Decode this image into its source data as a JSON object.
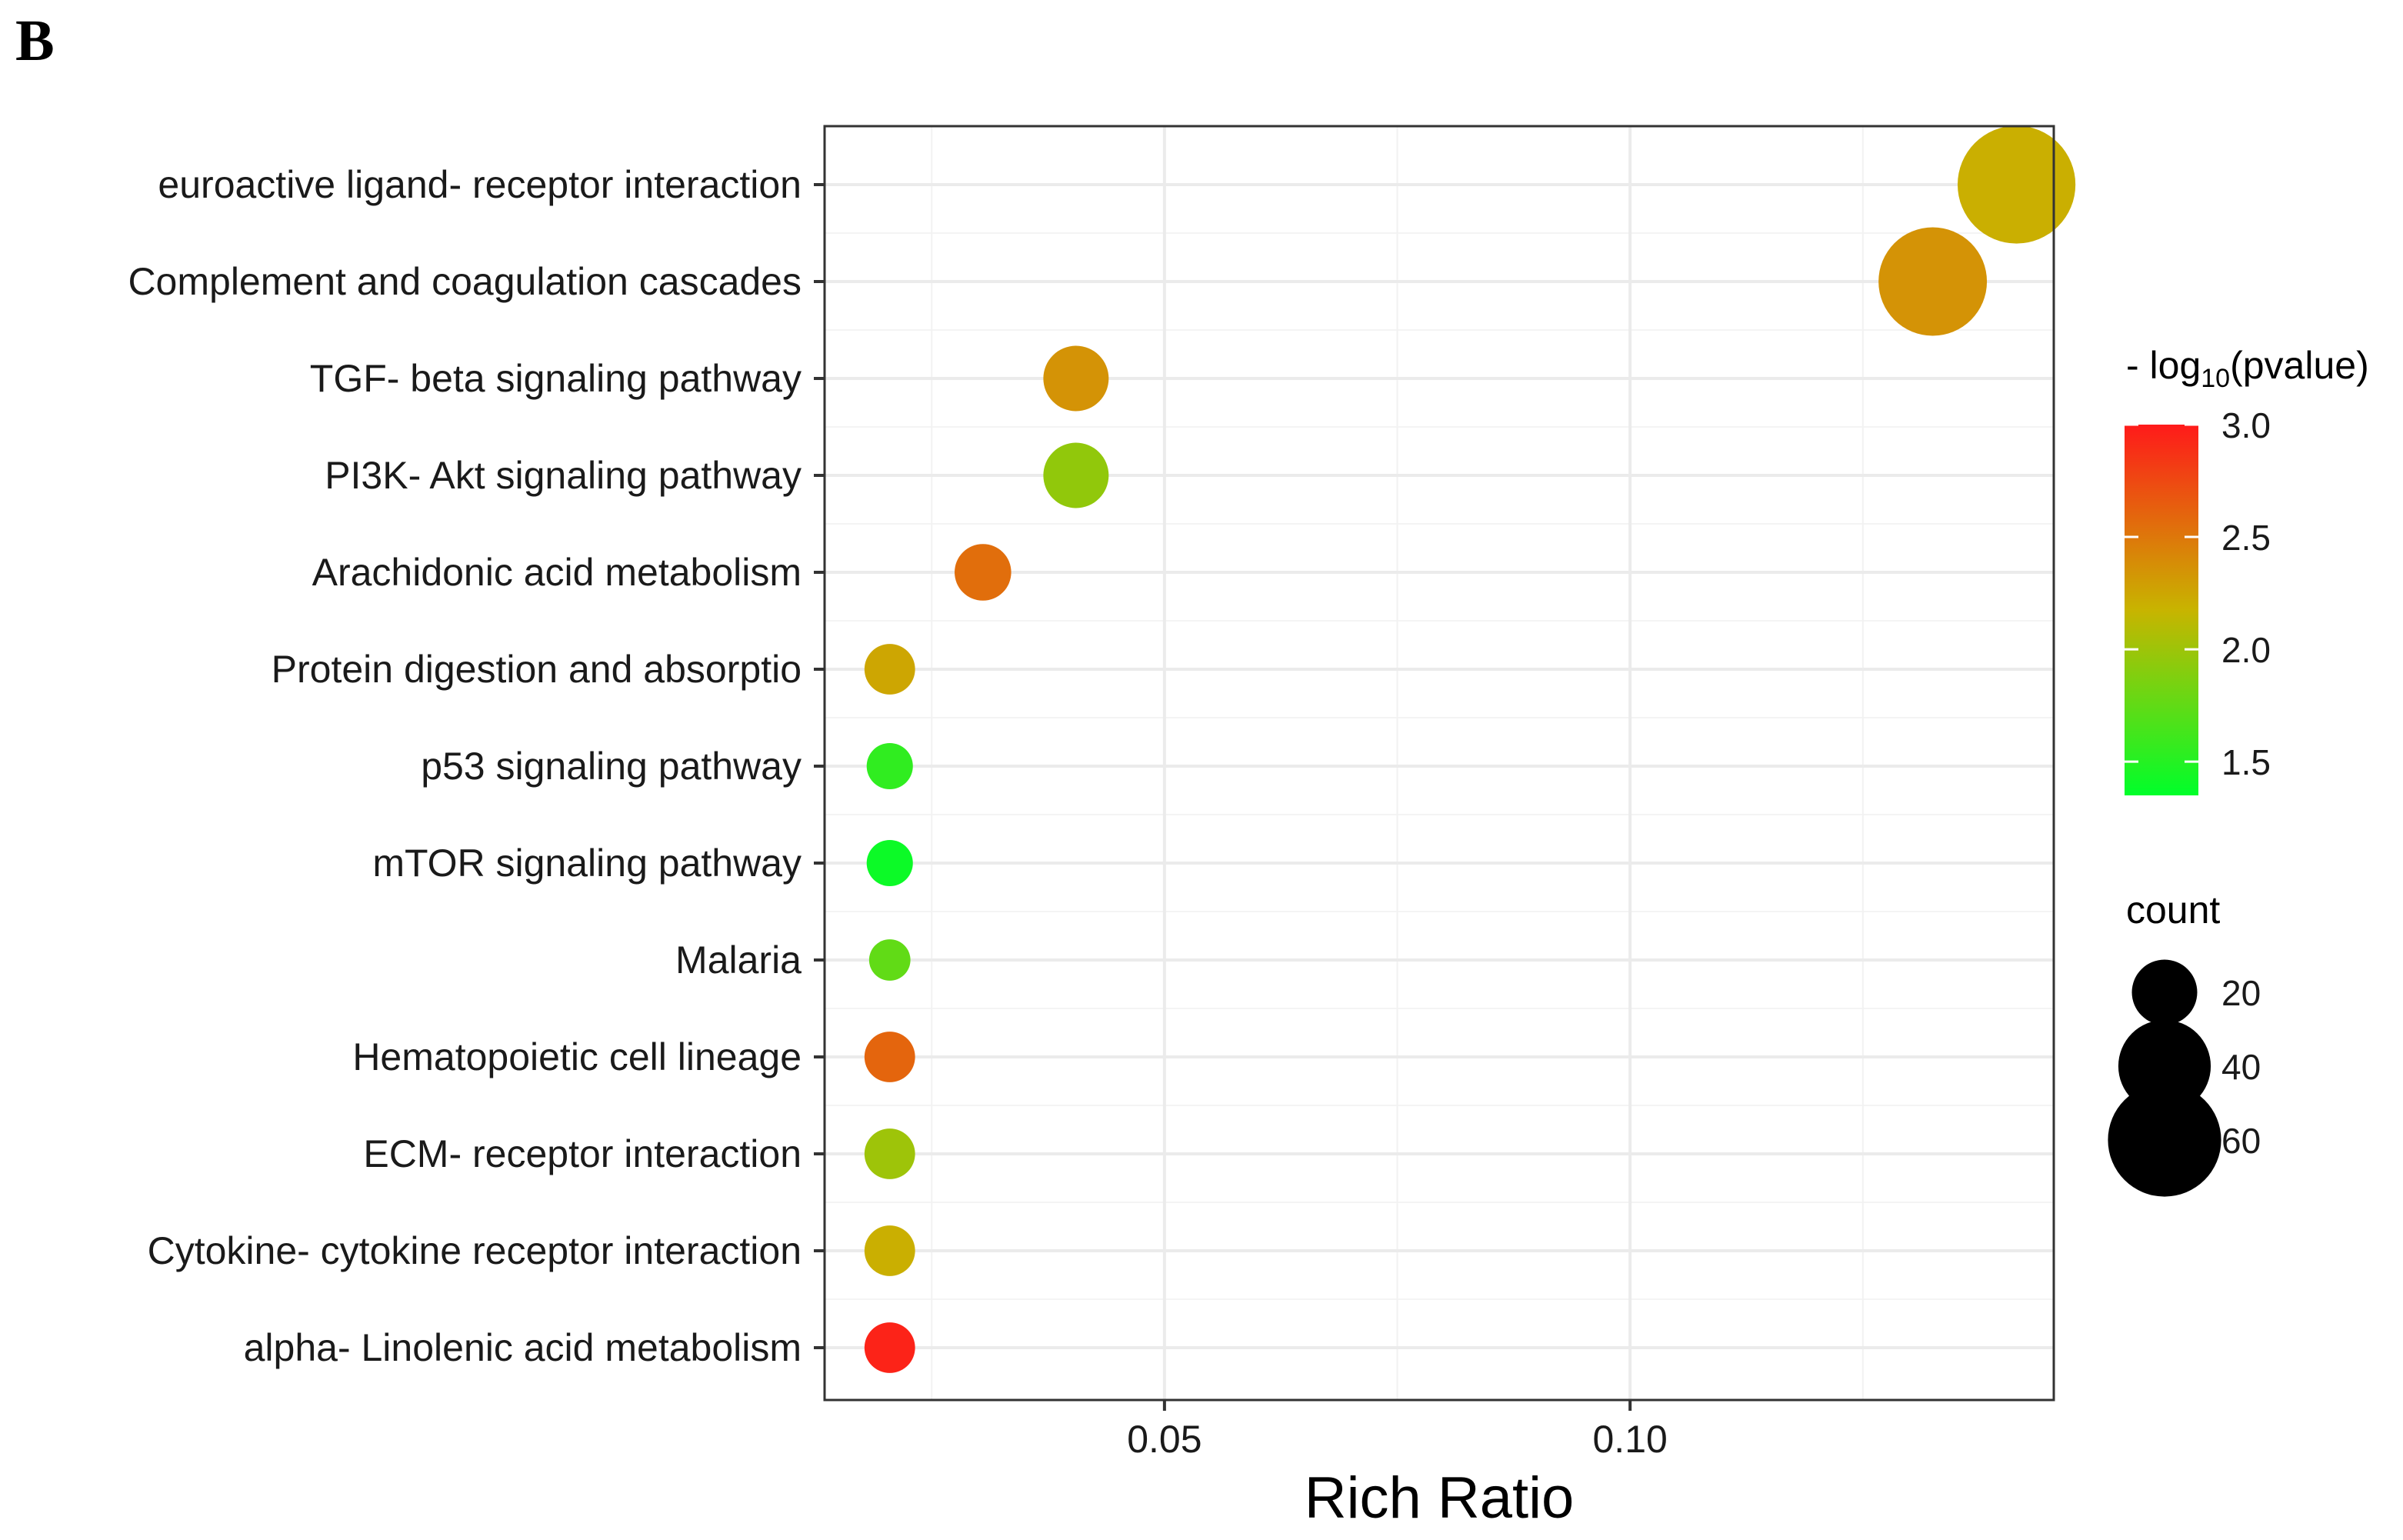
{
  "panel_label": "B",
  "chart_data": {
    "type": "scatter",
    "title": "",
    "xlabel": "Rich Ratio",
    "ylabel": "",
    "xlim": [
      0.0135,
      0.1455
    ],
    "x_ticks": [
      0.05,
      0.1
    ],
    "x_tick_labels": [
      "0.05",
      "0.10"
    ],
    "x_minor_gridlines": [
      0.025,
      0.075,
      0.125
    ],
    "grid": true,
    "categories": [
      "euroactive ligand- receptor interaction",
      "Complement and coagulation cascades",
      "TGF- beta signaling pathway",
      "PI3K- Akt signaling pathway",
      "Arachidonic acid metabolism",
      "Protein digestion and absorptio",
      "p53 signaling pathway",
      "mTOR signaling pathway",
      "Malaria",
      "Hematopoietic cell lineage",
      "ECM- receptor interaction",
      "Cytokine- cytokine receptor interaction",
      "alpha- Linolenic acid metabolism"
    ],
    "points": [
      {
        "x": 0.1415,
        "neg_log10_pvalue": 2.2,
        "count": 65
      },
      {
        "x": 0.1325,
        "neg_log10_pvalue": 2.35,
        "count": 55
      },
      {
        "x": 0.0405,
        "neg_log10_pvalue": 2.35,
        "count": 20
      },
      {
        "x": 0.0405,
        "neg_log10_pvalue": 1.95,
        "count": 20
      },
      {
        "x": 0.0305,
        "neg_log10_pvalue": 2.55,
        "count": 15
      },
      {
        "x": 0.0205,
        "neg_log10_pvalue": 2.25,
        "count": 12
      },
      {
        "x": 0.0205,
        "neg_log10_pvalue": 1.55,
        "count": 10
      },
      {
        "x": 0.0205,
        "neg_log10_pvalue": 1.4,
        "count": 10
      },
      {
        "x": 0.0205,
        "neg_log10_pvalue": 1.75,
        "count": 8
      },
      {
        "x": 0.0205,
        "neg_log10_pvalue": 2.6,
        "count": 12
      },
      {
        "x": 0.0205,
        "neg_log10_pvalue": 2.0,
        "count": 12
      },
      {
        "x": 0.0205,
        "neg_log10_pvalue": 2.2,
        "count": 12
      },
      {
        "x": 0.0205,
        "neg_log10_pvalue": 2.95,
        "count": 12
      }
    ],
    "color_legend": {
      "title_prefix": "- log",
      "title_sub": "10",
      "title_suffix": "(pvalue)",
      "range": [
        1.35,
        3.0
      ],
      "ticks": [
        3.0,
        2.5,
        2.0,
        1.5
      ],
      "tick_labels": [
        "3.0",
        "2.5",
        "2.0",
        "1.5"
      ],
      "low_color": "#00ff2a",
      "mid_color": "#c8b400",
      "high_color": "#ff1a1a"
    },
    "size_legend": {
      "title": "count",
      "values": [
        20,
        40,
        60
      ],
      "labels": [
        "20",
        "40",
        "60"
      ],
      "color": "#000000"
    },
    "legend_position": "right"
  }
}
